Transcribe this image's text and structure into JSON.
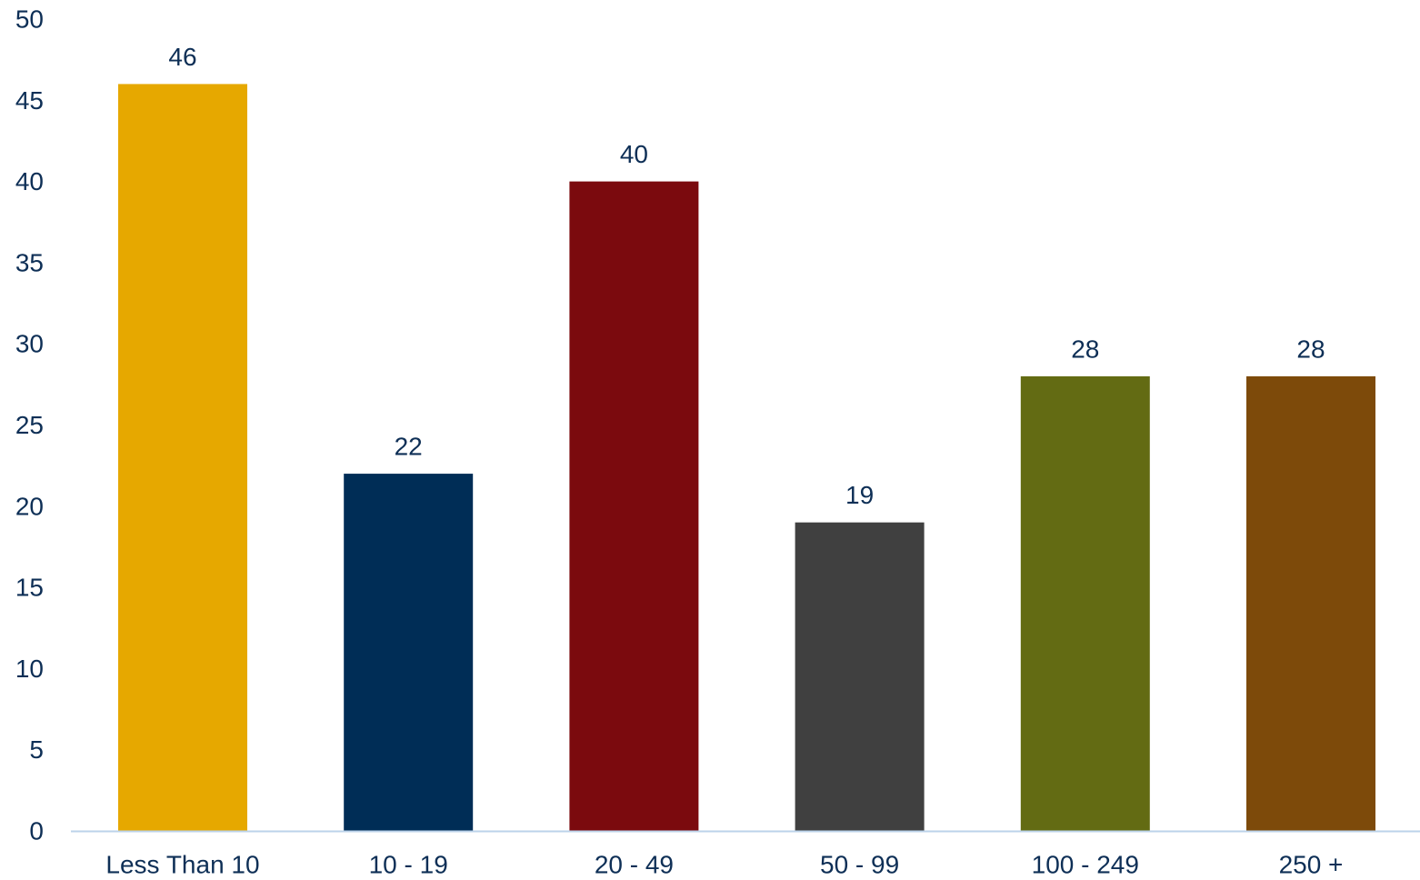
{
  "chart_data": {
    "type": "bar",
    "title": "",
    "xlabel": "",
    "ylabel": "",
    "ylim": [
      0,
      50
    ],
    "yticks": [
      0,
      5,
      10,
      15,
      20,
      25,
      30,
      35,
      40,
      45,
      50
    ],
    "categories": [
      "Less Than 10",
      "10 - 19",
      "20 - 49",
      "50 - 99",
      "100 - 249",
      "250 +"
    ],
    "values": [
      46,
      22,
      40,
      19,
      28,
      28
    ],
    "data_labels": [
      "46",
      "22",
      "40",
      "19",
      "28",
      "28"
    ],
    "colors": [
      "#e6a800",
      "#002d56",
      "#7b0a0e",
      "#404040",
      "#636b13",
      "#7d4a0a"
    ],
    "grid": false,
    "legend": "none",
    "axis_color": "#bcd3ea",
    "text_color": "#0e2f56"
  }
}
